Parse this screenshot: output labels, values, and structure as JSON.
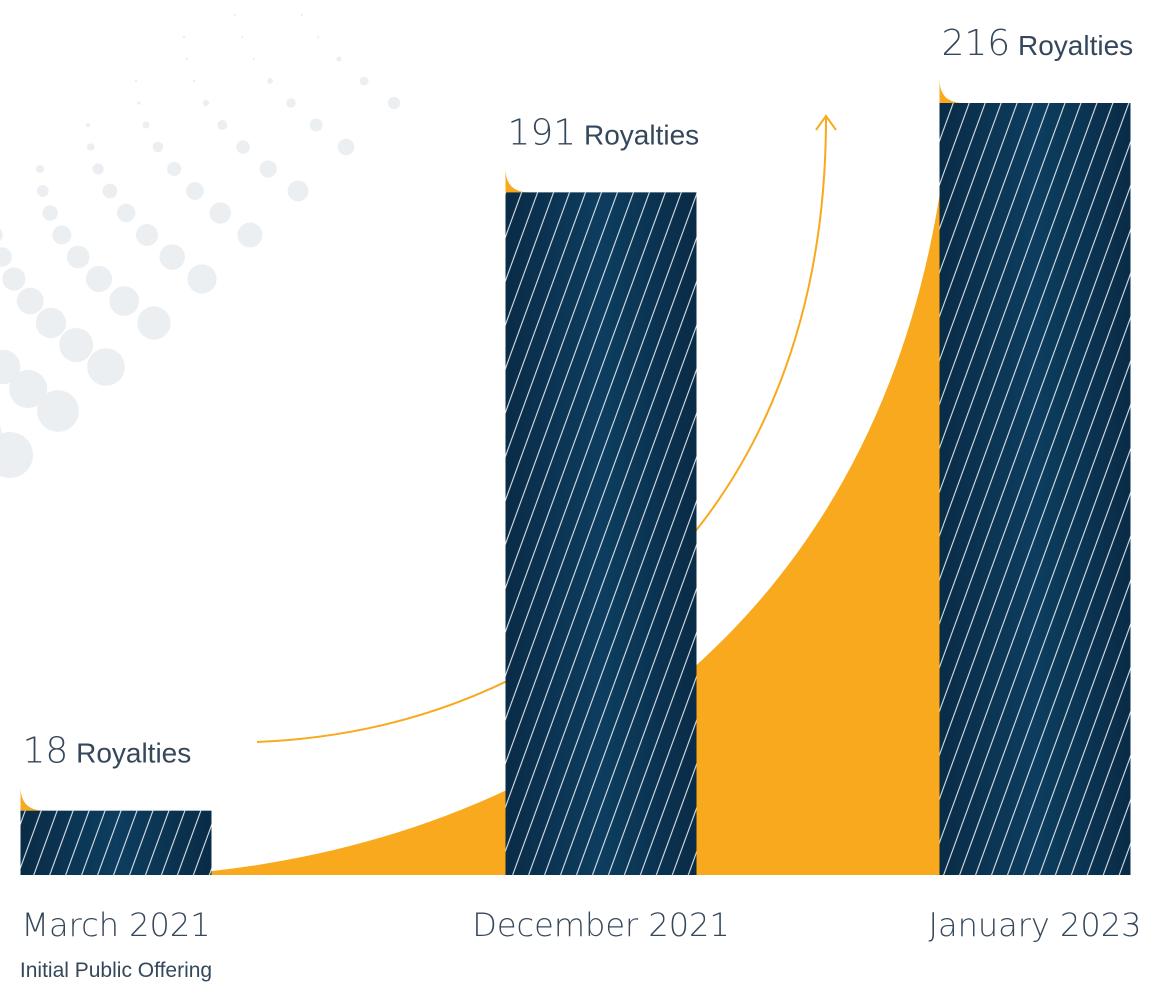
{
  "chart_data": {
    "type": "bar",
    "categories": [
      "March 2021",
      "December 2021",
      "January 2023"
    ],
    "values": [
      18,
      191,
      216
    ],
    "value_labels": [
      "18",
      "191",
      "216"
    ],
    "unit_label": "Royalties",
    "sublabels": [
      "Initial Public Offering",
      "",
      ""
    ],
    "title": "",
    "xlabel": "",
    "ylabel": "",
    "ylim": [
      0,
      216
    ],
    "grid": false,
    "legend": "none"
  },
  "colors": {
    "bar": "#0d3d5f",
    "bar_dark": "#092c47",
    "accent": "#f8a91d",
    "text": "#35475a",
    "dots": "#eceff2"
  }
}
